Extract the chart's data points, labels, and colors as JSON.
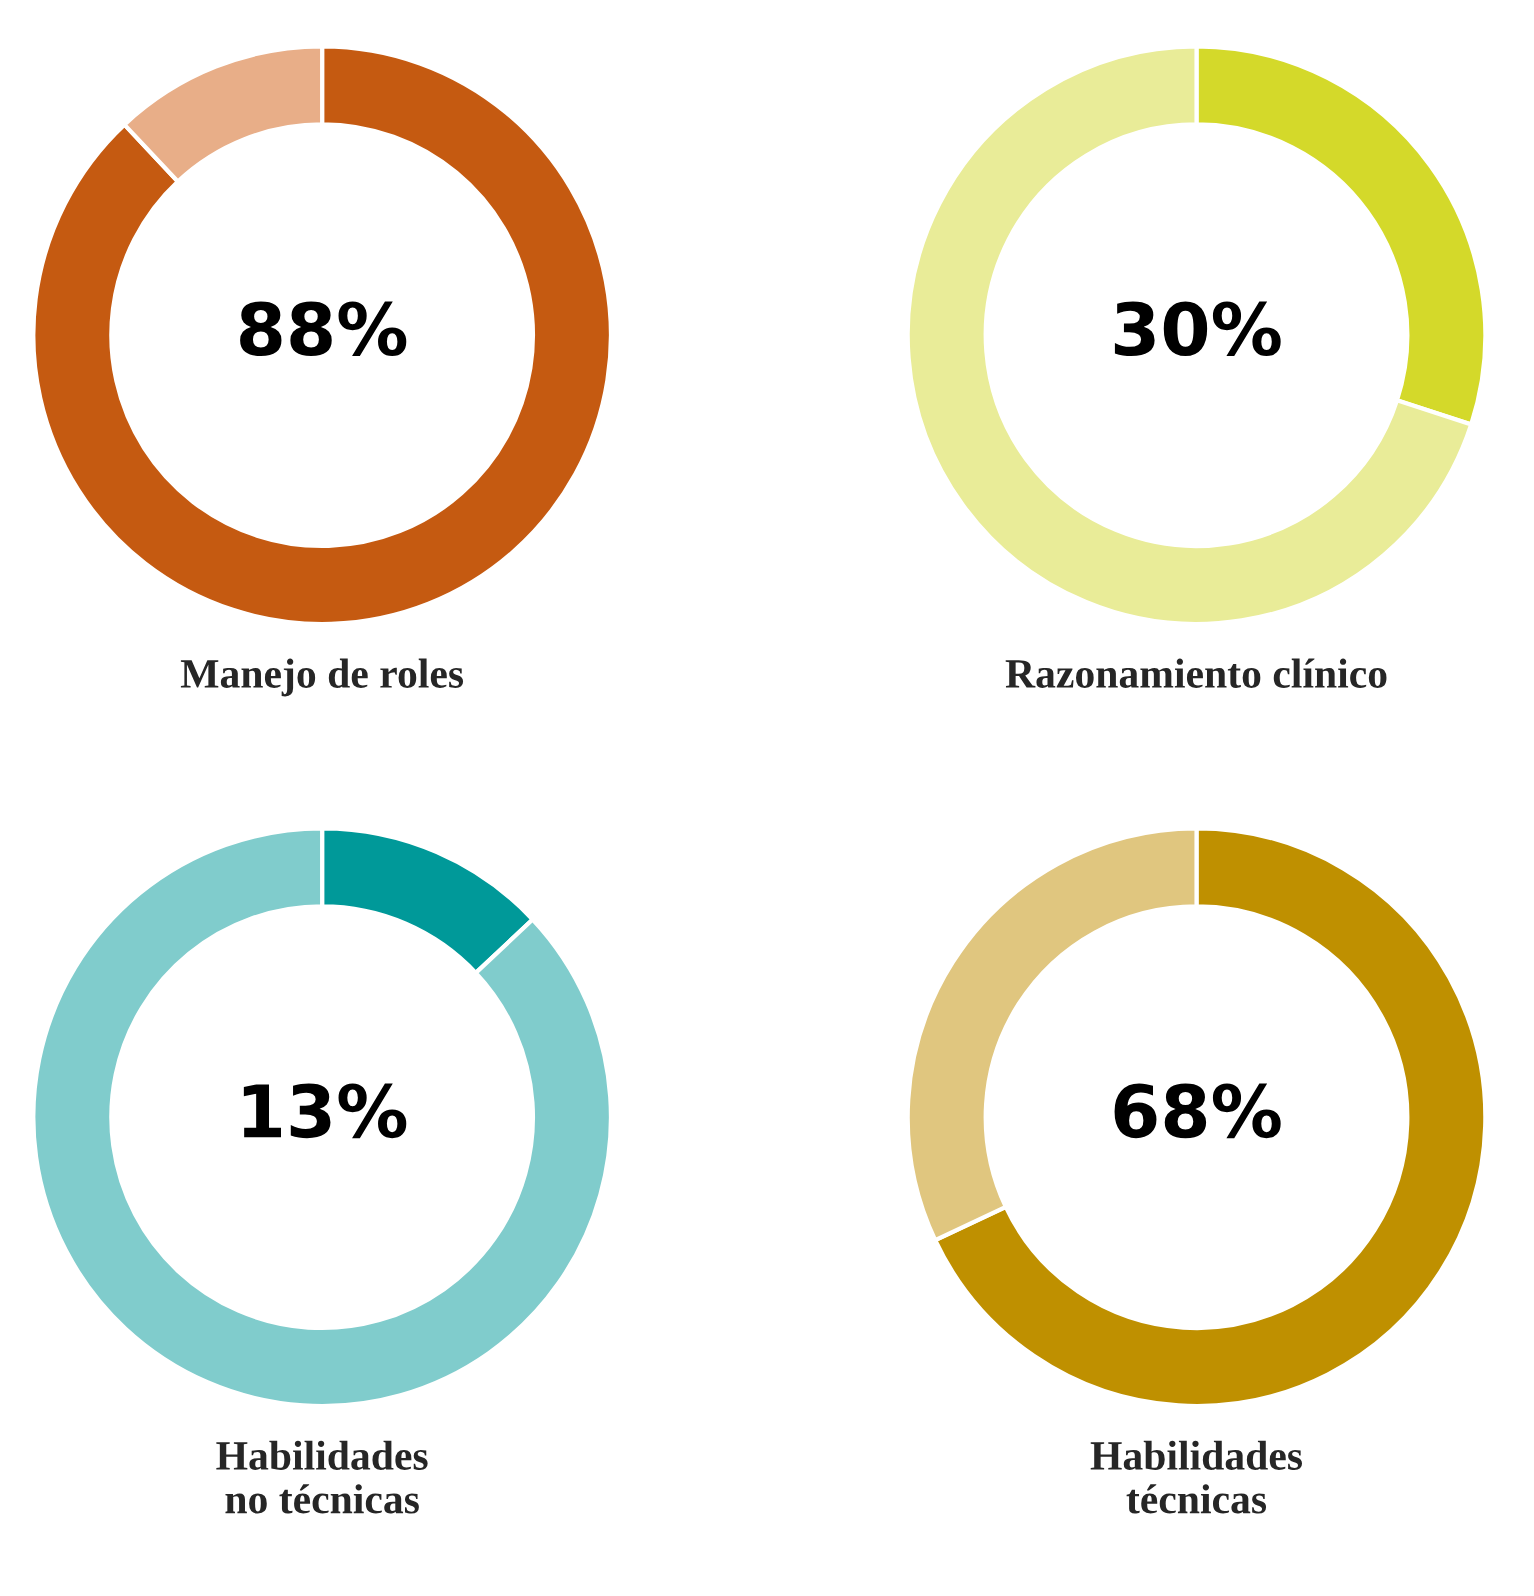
{
  "chart_data": [
    {
      "type": "donut",
      "title": "Manejo de roles",
      "categories": [
        null,
        null
      ],
      "values": [
        88,
        12
      ],
      "colors": [
        "#c55a11",
        "#e8ae88"
      ],
      "annotations": [
        "88%"
      ]
    },
    {
      "type": "donut",
      "title": "Razonamiento clínico",
      "categories": [
        null,
        null
      ],
      "values": [
        30,
        70
      ],
      "colors": [
        "#d4d92a",
        "#e9ec98"
      ],
      "annotations": [
        "30%"
      ]
    },
    {
      "type": "donut",
      "title": "Habilidades\nno técnicas",
      "categories": [
        null,
        null
      ],
      "values": [
        13,
        87
      ],
      "colors": [
        "#009999",
        "#80cccc"
      ],
      "annotations": [
        "13%"
      ]
    },
    {
      "type": "donut",
      "title": "Habilidades\ntécnicas",
      "categories": [
        null,
        null
      ],
      "values": [
        68,
        32
      ],
      "colors": [
        "#bf9000",
        "#e0c67f"
      ],
      "annotations": [
        "68%"
      ]
    }
  ]
}
